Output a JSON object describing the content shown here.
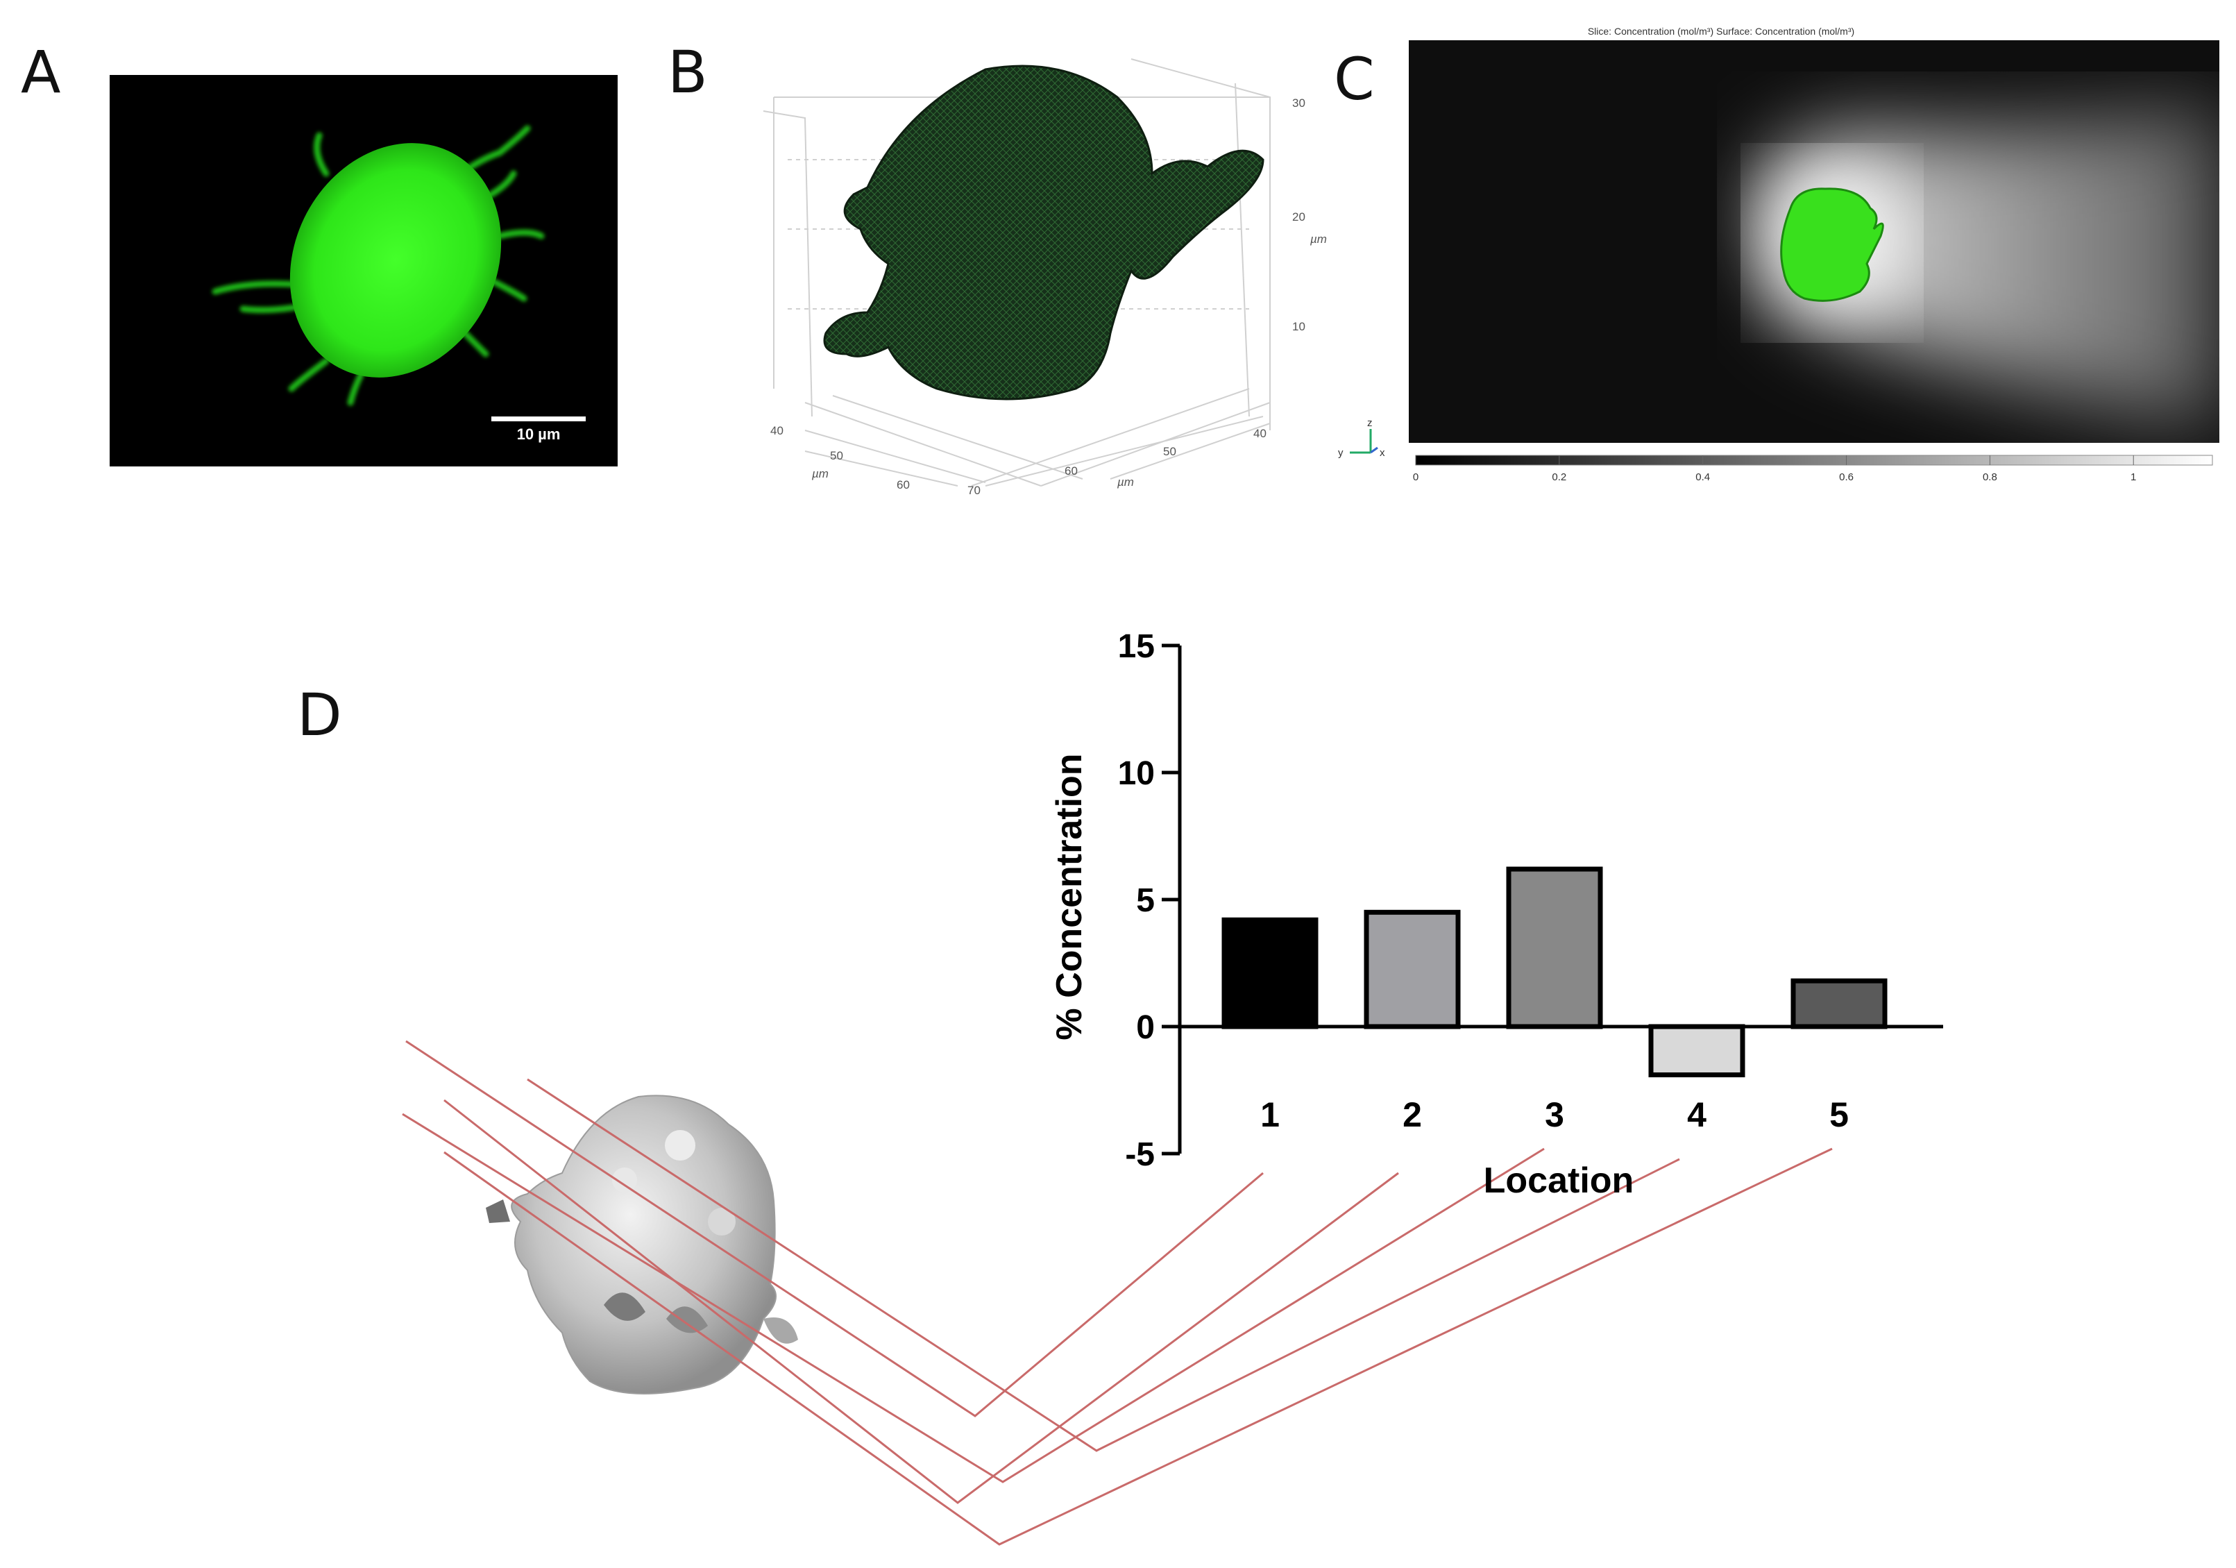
{
  "panels": {
    "a": {
      "letter": "A",
      "scale_bar_label": "10 µm"
    },
    "b": {
      "letter": "B",
      "z_ticks": [
        "30",
        "20",
        "10"
      ],
      "z_axis_label": "µm",
      "y_ticks": [
        "40",
        "50",
        "60"
      ],
      "y_axis_label": "µm",
      "x_ticks": [
        "70",
        "60",
        "50",
        "40"
      ],
      "x_axis_label": "µm"
    },
    "c": {
      "letter": "C",
      "title": "Slice: Concentration (mol/m³)  Surface: Concentration (mol/m³)",
      "colorbar_ticks": [
        "0",
        "0.2",
        "0.4",
        "0.6",
        "0.8",
        "1"
      ],
      "colorbar_range": [
        0,
        1.11
      ],
      "triad_labels": {
        "z": "z",
        "y": "y",
        "x": "x"
      }
    },
    "d": {
      "letter": "D"
    }
  },
  "chart_data": {
    "type": "bar",
    "categories": [
      "1",
      "2",
      "3",
      "4",
      "5"
    ],
    "values": [
      4.2,
      4.5,
      6.2,
      -1.9,
      1.8
    ],
    "colors": [
      "#000000",
      "#a0a0a4",
      "#888888",
      "#d9d9d9",
      "#5a5a5a"
    ],
    "xlabel": "Location",
    "ylabel": "% Concentration",
    "ylim": [
      -5,
      15
    ],
    "yticks": [
      -5,
      0,
      5,
      10,
      15
    ]
  },
  "colors": {
    "fluorescence": "#33ff1a",
    "mesh": "#1c3a1c",
    "guide_lines": "#c96a6a",
    "cell_surface": "#b8b8b8"
  }
}
